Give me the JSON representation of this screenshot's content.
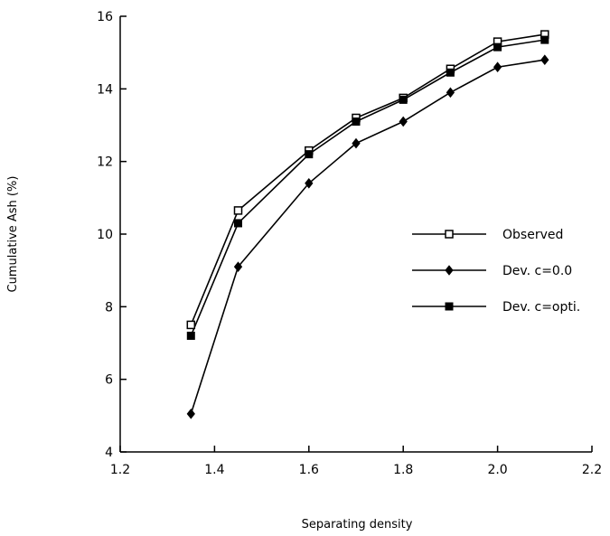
{
  "chart_data": {
    "type": "line",
    "title": "",
    "xlabel": "Separating density",
    "ylabel": "Cumulative Ash (%)",
    "xlim": [
      1.2,
      2.2
    ],
    "ylim": [
      4,
      16
    ],
    "x_ticks": [
      "1.2",
      "1.4",
      "1.6",
      "1.8",
      "2.0",
      "2.2"
    ],
    "y_ticks": [
      "4",
      "6",
      "8",
      "10",
      "12",
      "14",
      "16"
    ],
    "grid": false,
    "legend_position": "right",
    "x": [
      1.35,
      1.45,
      1.6,
      1.7,
      1.8,
      1.9,
      2.0,
      2.1
    ],
    "series": [
      {
        "name": "Observed",
        "marker": "open-square",
        "values": [
          7.5,
          10.65,
          12.3,
          13.2,
          13.75,
          14.55,
          15.3,
          15.5
        ]
      },
      {
        "name": "Dev. c=0.0",
        "marker": "filled-diamond",
        "values": [
          5.05,
          9.1,
          11.4,
          12.5,
          13.1,
          13.9,
          14.6,
          14.8
        ]
      },
      {
        "name": "Dev. c=opti.",
        "marker": "filled-square",
        "values": [
          7.2,
          10.3,
          12.2,
          13.1,
          13.7,
          14.45,
          15.15,
          15.35
        ]
      }
    ]
  }
}
